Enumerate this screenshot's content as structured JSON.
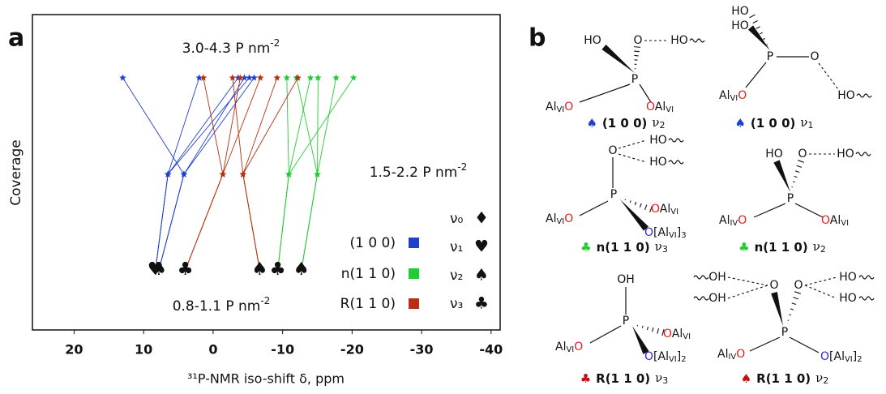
{
  "chart_data": {
    "type": "line",
    "panel": "a",
    "xlabel": "³¹P-NMR iso-shift δ, ppm",
    "ylabel": "Coverage",
    "xlim": [
      26,
      -41.3
    ],
    "xticks": [
      20,
      10,
      0,
      -10,
      -20,
      -30,
      -40
    ],
    "levels": [
      {
        "text": "3.0-4.3 P nm",
        "sup": "-2"
      },
      {
        "text": "1.5-2.2 P nm",
        "sup": "-2"
      },
      {
        "text": "0.8-1.1 P nm",
        "sup": "-2"
      }
    ],
    "series": [
      {
        "name": "(1 0 0)",
        "color": "#1f3fd0",
        "lines": [
          {
            "values": [
              13.0,
              4.2,
              7.8
            ],
            "marker": "♠"
          },
          {
            "values": [
              2.0,
              6.5,
              8.3
            ],
            "marker": "♥"
          },
          {
            "values": [
              -3.6,
              6.5,
              8.3
            ],
            "marker": "♥"
          },
          {
            "values": [
              -4.5,
              4.2,
              7.8
            ],
            "marker": "♠"
          },
          {
            "values": [
              -5.2,
              6.5,
              8.3
            ],
            "marker": "♥"
          },
          {
            "values": [
              -5.9,
              4.2,
              7.8
            ],
            "marker": "♠"
          }
        ]
      },
      {
        "name": "n(1 1 0)",
        "color": "#22cc33",
        "lines": [
          {
            "values": [
              -10.6,
              -10.9,
              -9.3
            ],
            "marker": "♣"
          },
          {
            "values": [
              -14.0,
              -10.9,
              -9.3
            ],
            "marker": "♣"
          },
          {
            "values": [
              -20.2,
              -10.9,
              -9.3
            ],
            "marker": "♣"
          },
          {
            "values": [
              -15.1,
              -15.0,
              -12.7
            ],
            "marker": "♠"
          },
          {
            "values": [
              -17.7,
              -15.0,
              -12.7
            ],
            "marker": "♠"
          },
          {
            "values": [
              -12.0,
              -15.0,
              -12.7
            ],
            "marker": "♠"
          }
        ]
      },
      {
        "name": "R(1 1 0)",
        "color": "#b83010",
        "lines": [
          {
            "values": [
              1.4,
              -1.4,
              4.0
            ],
            "marker": "♣"
          },
          {
            "values": [
              -3.9,
              -1.4,
              4.0
            ],
            "marker": "♣"
          },
          {
            "values": [
              -6.8,
              -1.4,
              4.0
            ],
            "marker": "♣"
          },
          {
            "values": [
              -2.8,
              -4.3,
              -6.7
            ],
            "marker": "♠"
          },
          {
            "values": [
              -9.2,
              -4.3,
              -6.7
            ],
            "marker": "♠"
          },
          {
            "values": [
              -12.2,
              -4.3,
              -6.7
            ],
            "marker": "♠"
          }
        ]
      }
    ],
    "modes": [
      {
        "name": "ν₀",
        "symbol": "♦"
      },
      {
        "name": "ν₁",
        "symbol": "♥"
      },
      {
        "name": "ν₂",
        "symbol": "♠"
      },
      {
        "name": "ν₃",
        "symbol": "♣"
      }
    ]
  },
  "diagram": {
    "panel": "b",
    "structures": [
      {
        "caption": {
          "symbol": "♠",
          "color": "#1f3fd0",
          "surface": "(1 0 0)",
          "mode": "ν",
          "sub": "2"
        },
        "labels": [
          [
            {
              "t": "HO"
            }
          ],
          [
            {
              "t": "O"
            }
          ],
          [
            {
              "t": "HO"
            }
          ],
          [
            {
              "t": "P"
            }
          ],
          [
            {
              "t": "Al"
            },
            {
              "sub": "VI"
            },
            {
              "red": "O"
            }
          ],
          [
            {
              "red": "O"
            },
            {
              "t": "Al"
            },
            {
              "sub": "VI"
            }
          ]
        ]
      },
      {
        "caption": {
          "symbol": "♠",
          "color": "#1f3fd0",
          "surface": "(1 0 0)",
          "mode": "ν",
          "sub": "1"
        },
        "labels": [
          [
            {
              "t": "HO"
            }
          ],
          [
            {
              "t": "HO"
            }
          ],
          [
            {
              "t": "P"
            }
          ],
          [
            {
              "t": "O"
            }
          ],
          [
            {
              "t": "HO"
            }
          ],
          [
            {
              "t": "Al"
            },
            {
              "sub": "VI"
            },
            {
              "red": "O"
            }
          ]
        ]
      },
      {
        "caption": {
          "symbol": "♣",
          "color": "#22cc33",
          "surface": "n(1 1 0)",
          "mode": "ν",
          "sub": "3"
        },
        "labels": [
          [
            {
              "t": "O"
            }
          ],
          [
            {
              "t": "HO"
            }
          ],
          [
            {
              "t": "HO"
            }
          ],
          [
            {
              "t": "P"
            }
          ],
          [
            {
              "t": "Al"
            },
            {
              "sub": "VI"
            },
            {
              "red": "O"
            }
          ],
          [
            {
              "red": "O"
            },
            {
              "t": "Al"
            },
            {
              "sub": "VI"
            }
          ],
          [
            {
              "blue": "O"
            },
            {
              "t": "[Al"
            },
            {
              "sub": "VI"
            },
            {
              "t": "]"
            },
            {
              "sub": "3"
            }
          ]
        ]
      },
      {
        "caption": {
          "symbol": "♣",
          "color": "#22cc33",
          "surface": "n(1 1 0)",
          "mode": "ν",
          "sub": "2"
        },
        "labels": [
          [
            {
              "t": "HO"
            }
          ],
          [
            {
              "t": "O"
            }
          ],
          [
            {
              "t": "HO"
            }
          ],
          [
            {
              "t": "P"
            }
          ],
          [
            {
              "t": "Al"
            },
            {
              "sub": "IV"
            },
            {
              "red": "O"
            }
          ],
          [
            {
              "red": "O"
            },
            {
              "t": "Al"
            },
            {
              "sub": "VI"
            }
          ]
        ]
      },
      {
        "caption": {
          "symbol": "♣",
          "color": "#c01010",
          "surface": "R(1 1 0)",
          "mode": "ν",
          "sub": "3"
        },
        "labels": [
          [
            {
              "t": "OH"
            }
          ],
          [
            {
              "t": "P"
            }
          ],
          [
            {
              "t": "Al"
            },
            {
              "sub": "VI"
            },
            {
              "red": "O"
            }
          ],
          [
            {
              "red": "O"
            },
            {
              "t": "Al"
            },
            {
              "sub": "VI"
            }
          ],
          [
            {
              "blue": "O"
            },
            {
              "t": "[Al"
            },
            {
              "sub": "VI"
            },
            {
              "t": "]"
            },
            {
              "sub": "2"
            }
          ]
        ]
      },
      {
        "caption": {
          "symbol": "♠",
          "color": "#c01010",
          "surface": "R(1 1 0)",
          "mode": "ν",
          "sub": "2"
        },
        "labels": [
          [
            {
              "t": "OH"
            }
          ],
          [
            {
              "t": "OH"
            }
          ],
          [
            {
              "t": "O"
            }
          ],
          [
            {
              "t": "O"
            }
          ],
          [
            {
              "t": "HO"
            }
          ],
          [
            {
              "t": "HO"
            }
          ],
          [
            {
              "t": "P"
            }
          ],
          [
            {
              "t": "Al"
            },
            {
              "sub": "IV"
            },
            {
              "red": "O"
            }
          ],
          [
            {
              "blue": "O"
            },
            {
              "t": "[Al"
            },
            {
              "sub": "VI"
            },
            {
              "t": "]"
            },
            {
              "sub": "2"
            }
          ]
        ]
      }
    ]
  }
}
